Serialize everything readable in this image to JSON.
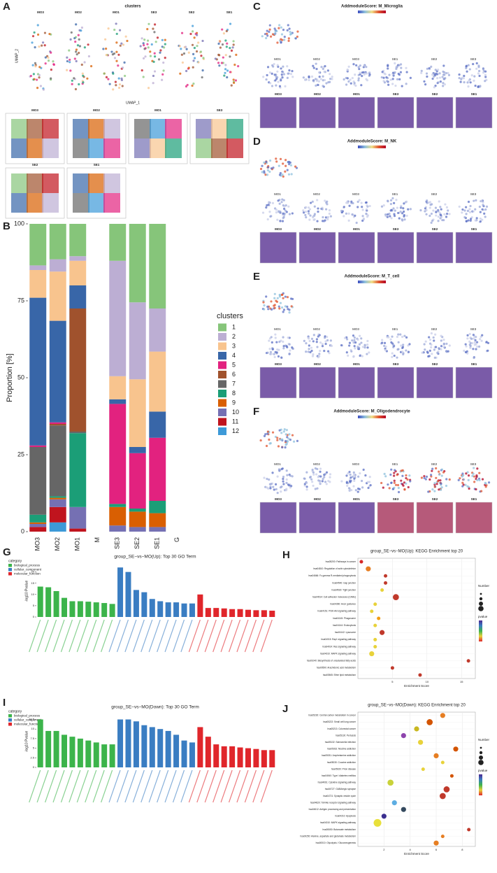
{
  "panels": {
    "A": {
      "letter": "A",
      "title": "clusters",
      "umap_labels": [
        "MO3",
        "MO2",
        "MO1",
        "SE3",
        "SE2",
        "SE1"
      ],
      "spatial_labels": [
        "MO3",
        "MO2",
        "MO1",
        "SE3",
        "SE2",
        "SE1"
      ],
      "axis_x": "UMAP_1",
      "axis_y": "UMAP_2"
    },
    "modules": [
      {
        "letter": "C",
        "title": "AddmoduleScore: M_Microglia"
      },
      {
        "letter": "D",
        "title": "AddmoduleScore: M_NK"
      },
      {
        "letter": "E",
        "title": "AddmoduleScore: M_T_cell"
      },
      {
        "letter": "F",
        "title": "AddmoduleScore: M_Oligodendrocyte"
      }
    ],
    "module_umap_labels": [
      "MO1",
      "MO2",
      "MO3",
      "SE1",
      "SE2",
      "SE3"
    ],
    "module_spatial_labels": [
      "MO3",
      "MO2",
      "MO1",
      "SE3",
      "SE2",
      "SE1"
    ]
  },
  "chart_data": [
    {
      "type": "stacked_bar",
      "panel_label": "B",
      "ylabel": "Proportion [%]",
      "legend_title": "clusters",
      "categories": [
        "MO3",
        "MO2",
        "MO1",
        "M",
        "SE3",
        "SE2",
        "SE1",
        "G"
      ],
      "ylim": [
        0,
        100
      ],
      "yticks": [
        0,
        25,
        50,
        75,
        100
      ],
      "series": [
        {
          "name": "1",
          "color": "#86c57a",
          "values": [
            13.5,
            11.5,
            10.5,
            null,
            12,
            25.5,
            27.5,
            null
          ]
        },
        {
          "name": "2",
          "color": "#bcaed3",
          "values": [
            1.5,
            4,
            1.5,
            null,
            37.5,
            25,
            14,
            null
          ]
        },
        {
          "name": "3",
          "color": "#f8c48e",
          "values": [
            9,
            16,
            8,
            null,
            7.5,
            22,
            19.5,
            null
          ]
        },
        {
          "name": "4",
          "color": "#3866a8",
          "values": [
            48,
            33,
            7.5,
            null,
            1.5,
            2,
            8.5,
            null
          ]
        },
        {
          "name": "5",
          "color": "#e2227f",
          "values": [
            0.5,
            0.5,
            0,
            null,
            32.5,
            18,
            20.5,
            null
          ]
        },
        {
          "name": "6",
          "color": "#a0522d",
          "values": [
            0,
            0.5,
            40,
            null,
            0,
            0,
            0,
            null
          ]
        },
        {
          "name": "7",
          "color": "#666666",
          "values": [
            22,
            23,
            0.5,
            null,
            0,
            0,
            0,
            null
          ]
        },
        {
          "name": "8",
          "color": "#1b9e77",
          "values": [
            2.5,
            0.5,
            24,
            null,
            1,
            1,
            4,
            null
          ]
        },
        {
          "name": "9",
          "color": "#d95f02",
          "values": [
            0.5,
            0.5,
            0,
            null,
            6,
            5,
            4.5,
            null
          ]
        },
        {
          "name": "10",
          "color": "#7570b3",
          "values": [
            1,
            2.5,
            7,
            null,
            2,
            1.5,
            1.5,
            null
          ]
        },
        {
          "name": "11",
          "color": "#c0141e",
          "values": [
            1.5,
            5,
            1,
            null,
            0,
            0,
            0,
            null
          ]
        },
        {
          "name": "12",
          "color": "#3d9ad8",
          "values": [
            0,
            3,
            0,
            null,
            0,
            0,
            0,
            null
          ]
        }
      ]
    },
    {
      "type": "group_bar",
      "panel_label": "G",
      "title": "group_SE−vs−MO(Up): Top 30 GO Term",
      "ylabel": "-log10 Pvalue",
      "legend_title": "category",
      "ylim": [
        0,
        23
      ],
      "yticks": [
        0,
        5,
        10,
        15,
        20
      ],
      "series": [
        {
          "name": "biological_process",
          "color": "#3cb44b",
          "values": [
            13.5,
            13.2,
            11.5,
            8.5,
            7,
            7,
            6.8,
            6.5,
            6.2,
            5.8
          ]
        },
        {
          "name": "cellular_component",
          "color": "#3a7dc2",
          "values": [
            22,
            20,
            12,
            11,
            8,
            7,
            6.5,
            6.5,
            6,
            6
          ]
        },
        {
          "name": "molecular_function",
          "color": "#e0262b",
          "values": [
            10,
            4,
            4,
            3.8,
            3.5,
            3.5,
            3.2,
            3,
            3,
            2.8
          ]
        }
      ]
    },
    {
      "type": "group_bar",
      "panel_label": "I",
      "title": "group_SE−vs−MO(Down): Top 30 GO Term",
      "ylabel": "-log10 Pvalue",
      "legend_title": "category",
      "ylim": [
        0,
        13.5
      ],
      "yticks": [
        0,
        2.5,
        5,
        7.5,
        10,
        12.5
      ],
      "series": [
        {
          "name": "biological_process",
          "color": "#3cb44b",
          "values": [
            12.5,
            9.5,
            9.5,
            8.5,
            8,
            7.5,
            7,
            6.5,
            6,
            6
          ]
        },
        {
          "name": "cellular_component",
          "color": "#3a7dc2",
          "values": [
            12.5,
            12.5,
            12,
            11,
            10.5,
            10,
            9.5,
            8.5,
            7,
            6.5
          ]
        },
        {
          "name": "molecular_function",
          "color": "#e0262b",
          "values": [
            10.5,
            8,
            6,
            5.5,
            5.5,
            5.2,
            5,
            4.8,
            4.5,
            4.5
          ]
        }
      ]
    },
    {
      "type": "dot",
      "panel_label": "H",
      "title": "group_SE−vs−MO(Up): KEGG Enrichment top 20",
      "xlabel": "Enrichment Score",
      "size_legend_title": "Number",
      "color_legend_title": "pvalue",
      "xlim": [
        0,
        17
      ],
      "xticks": [
        5,
        10,
        15
      ],
      "categories": [
        "hsa05200: Pathways in cancer",
        "hsa04810: Regulation of actin cytoskeleton",
        "hsa04666: Fc gamma R-mediated phagocytosis",
        "hsa04540: Gap junction",
        "hsa04530: Tight junction",
        "hsa04514: Cell adhesion molecules (CAMs)",
        "hsa04360: Axon guidance",
        "hsa04151: PI3K-Akt signaling pathway",
        "hsa04145: Phagosome",
        "hsa04144: Endocytosis",
        "hsa04142: Lysosome",
        "hsa04015: Rap1 signaling pathway",
        "hsa04014: Ras signaling pathway",
        "hsa04010: MAPK signaling pathway",
        "hsa01040: Biosynthesis of unsaturated fatty acids",
        "hsa00590: Arachidonic acid metabolism",
        "hsa00565: Ether lipid metabolism"
      ],
      "values": [
        0.5,
        1.5,
        4,
        4,
        3.5,
        5.5,
        2.5,
        2,
        3,
        2.5,
        3.5,
        2.5,
        2.5,
        2,
        16,
        5,
        9
      ],
      "sizes": [
        1,
        3,
        1,
        1,
        1,
        5,
        1,
        1,
        1,
        1,
        3,
        1,
        1,
        3,
        1,
        1,
        1
      ],
      "colors": [
        "#d62728",
        "#e67e22",
        "#c0392b",
        "#c0392b",
        "#e8d23a",
        "#c0392b",
        "#e8d23a",
        "#e8d23a",
        "#f39c12",
        "#e8d23a",
        "#c0392b",
        "#e8d23a",
        "#e8d23a",
        "#e8d23a",
        "#c0392b",
        "#c0392b",
        "#c0392b"
      ]
    },
    {
      "type": "dot",
      "panel_label": "J",
      "title": "group_SE−vs−MO(Down): KEGG Enrichment top 20",
      "xlabel": "Enrichment Score",
      "size_legend_title": "Number",
      "color_legend_title": "pvalue",
      "xlim": [
        0,
        9
      ],
      "xticks": [
        2,
        4,
        6,
        8
      ],
      "categories": [
        "hsa05230: Central carbon metabolism in cancer",
        "hsa05222: Small cell lung cancer",
        "hsa05213: Colorectal cancer",
        "hsa05130: Pertussis",
        "hsa05132: Salmonella infection",
        "hsa05033: Nicotine addiction",
        "hsa05031: Amphetamine addiction",
        "hsa05030: Cocaine addiction",
        "hsa05020: Prion disease",
        "hsa04940: Type I diabetes mellitus",
        "hsa04061: Cytokine signaling pathway",
        "hsa04727: GABAergic synapse",
        "hsa04721: Synaptic vesicle cycle",
        "hsa04620: Toll-like receptor signaling pathway",
        "hsa04612: Antigen processing and presentation",
        "hsa04210: Apoptosis",
        "hsa04010: MAPK signaling pathway",
        "hsa00650: Butanoate metabolism",
        "hsa00250: Alanine, aspartate and glutamate metabolism",
        "hsa00010: Glycolysis / Gluconeogenesis"
      ],
      "values": [
        6.5,
        5.5,
        4.5,
        3.5,
        4.8,
        7.5,
        6,
        6.5,
        5,
        7.2,
        2.5,
        6.8,
        6.5,
        2.8,
        3.5,
        2,
        1.5,
        8.5,
        6.5,
        6
      ],
      "sizes": [
        3,
        5,
        3,
        3,
        3,
        3,
        3,
        1,
        1,
        1,
        5,
        5,
        5,
        3,
        3,
        3,
        9,
        1,
        1,
        3
      ],
      "colors": [
        "#e67e22",
        "#d35400",
        "#c9b820",
        "#8e44ad",
        "#e8d23a",
        "#d35400",
        "#e67e22",
        "#e8d23a",
        "#e8d23a",
        "#d35400",
        "#c9d23a",
        "#c0392b",
        "#c0392b",
        "#5dade2",
        "#34495e",
        "#3b2f8f",
        "#e8e03a",
        "#c0392b",
        "#e67e22",
        "#e67e22"
      ]
    }
  ]
}
